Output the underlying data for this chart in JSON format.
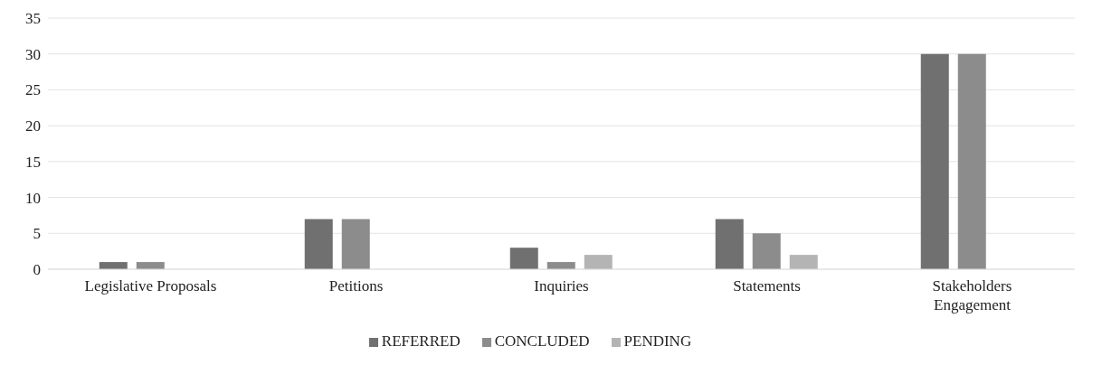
{
  "chart_data": {
    "type": "bar",
    "categories": [
      "Legislative Proposals",
      "Petitions",
      "Inquiries",
      "Statements",
      "Stakeholders Engagement"
    ],
    "series": [
      {
        "name": "REFERRED",
        "color": "#707070",
        "values": [
          1,
          7,
          3,
          7,
          30
        ]
      },
      {
        "name": "CONCLUDED",
        "color": "#8c8c8c",
        "values": [
          1,
          7,
          1,
          5,
          30
        ]
      },
      {
        "name": "PENDING",
        "color": "#b4b4b4",
        "values": [
          0,
          0,
          2,
          2,
          0
        ]
      }
    ],
    "ylim": [
      0,
      35
    ],
    "yticks": [
      0,
      5,
      10,
      15,
      20,
      25,
      30,
      35
    ],
    "grid": "y",
    "legend": "bottom"
  }
}
